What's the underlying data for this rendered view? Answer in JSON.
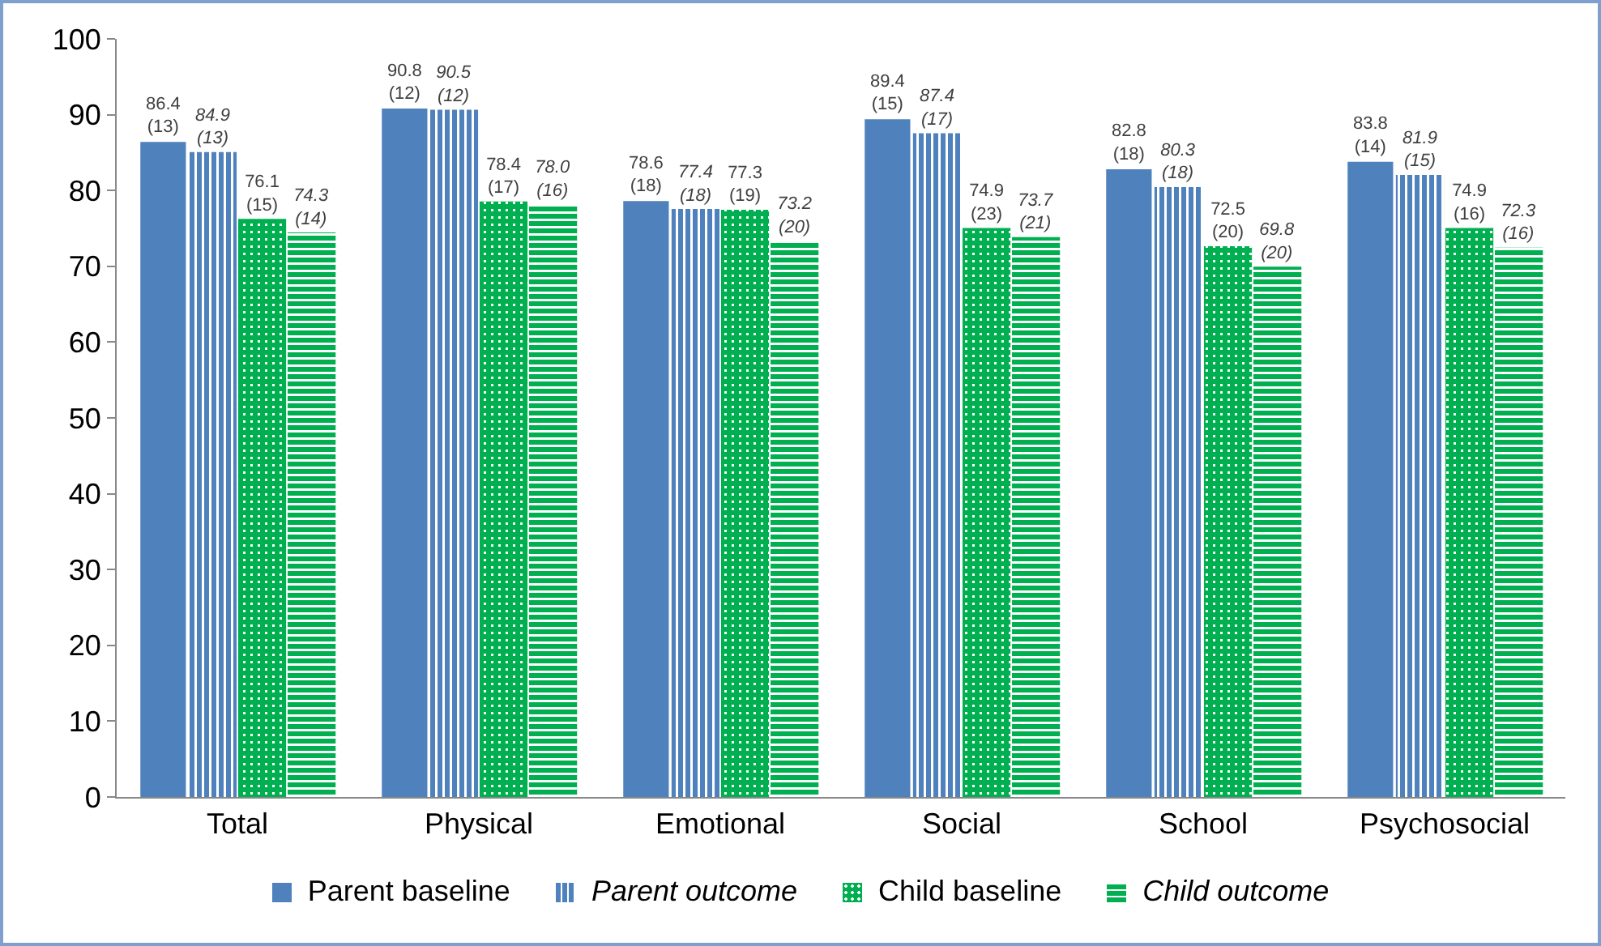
{
  "chart_data": {
    "type": "bar",
    "categories": [
      "Total",
      "Physical",
      "Emotional",
      "Social",
      "School",
      "Psychosocial"
    ],
    "series": [
      {
        "name": "Parent baseline",
        "color": "#4f81bd",
        "values": [
          86.4,
          90.8,
          78.6,
          89.4,
          82.8,
          83.8
        ],
        "value_labels": [
          "86.4\n(13)",
          "90.8\n(12)",
          "78.6\n(18)",
          "89.4\n(15)",
          "82.8\n(18)",
          "83.8\n(14)"
        ]
      },
      {
        "name": "Parent outcome",
        "color": "#4f81bd",
        "values": [
          84.9,
          90.5,
          77.4,
          87.4,
          80.3,
          81.9
        ],
        "value_labels": [
          "84.9\n(13)",
          "90.5\n(12)",
          "77.4\n(18)",
          "87.4\n(17)",
          "80.3\n(18)",
          "81.9\n(15)"
        ]
      },
      {
        "name": "Child baseline",
        "color": "#00b050",
        "values": [
          76.1,
          78.4,
          77.3,
          74.9,
          72.5,
          74.9
        ],
        "value_labels": [
          "76.1\n(15)",
          "78.4\n(17)",
          "77.3\n(19)",
          "74.9\n(23)",
          "72.5\n(20)",
          "74.9\n(16)"
        ]
      },
      {
        "name": "Child outcome",
        "color": "#00b050",
        "values": [
          74.3,
          78.0,
          73.2,
          73.7,
          69.8,
          72.3
        ],
        "value_labels": [
          "74.3\n(14)",
          "78.0\n(16)",
          "73.2\n(20)",
          "73.7\n(21)",
          "69.8\n(20)",
          "72.3\n(16)"
        ]
      }
    ],
    "ylim": [
      0,
      100
    ],
    "yticks": [
      0,
      10,
      20,
      30,
      40,
      50,
      60,
      70,
      80,
      90,
      100
    ],
    "grid": false,
    "legend": "bottom"
  }
}
